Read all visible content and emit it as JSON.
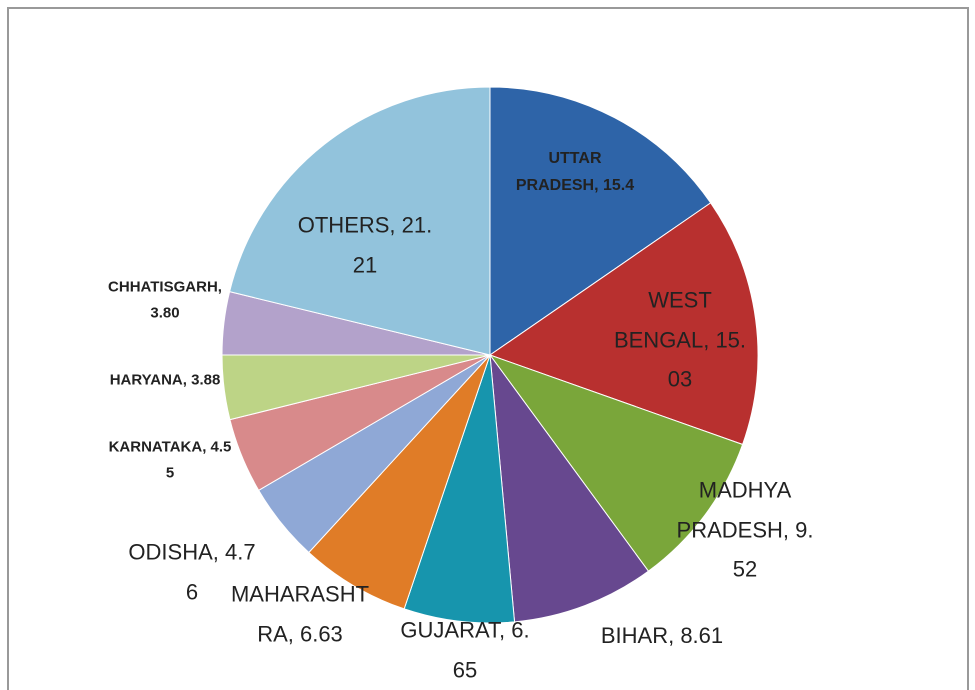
{
  "chart_data": {
    "type": "pie",
    "labels": [
      "UTTAR\nPRADESH, 15.4",
      "WEST\nBENGAL, 15.\n03",
      "MADHYA\nPRADESH, 9.\n52",
      "BIHAR, 8.61",
      "GUJARAT, 6.\n65",
      "MAHARASHT\nRA, 6.63",
      "ODISHA, 4.7\n6",
      "KARNATAKA, 4.5\n5",
      "HARYANA, 3.88",
      "CHHATISGARH,\n3.80",
      "OTHERS, 21.\n21"
    ],
    "values": [
      15.4,
      15.03,
      9.52,
      8.61,
      6.65,
      6.63,
      4.76,
      4.55,
      3.88,
      3.8,
      21.21
    ],
    "colors": [
      "#2e64a8",
      "#b8302f",
      "#7aa63a",
      "#67488f",
      "#1795ad",
      "#e07c27",
      "#8fa8d6",
      "#d88a8b",
      "#bdd486",
      "#b3a2cb",
      "#92c3dc"
    ]
  }
}
